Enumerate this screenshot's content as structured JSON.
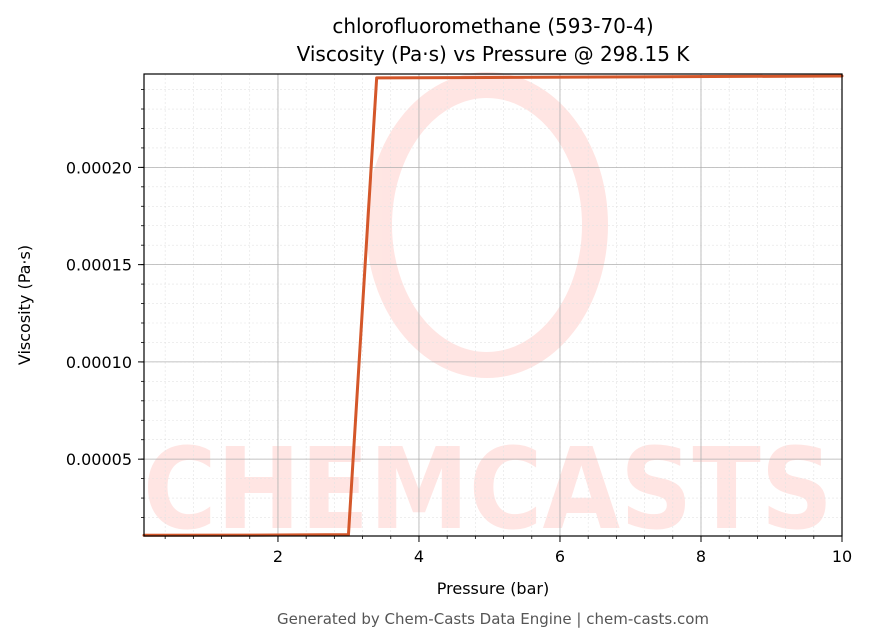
{
  "chart_data": {
    "type": "line",
    "title": "chlorofluoromethane (593-70-4)",
    "subtitle": "Viscosity (Pa·s) vs Pressure @ 298.15 K",
    "xlabel": "Pressure (bar)",
    "ylabel": "Viscosity (Pa·s)",
    "xlim": [
      0.1,
      10
    ],
    "ylim": [
      1.05e-05,
      0.000248
    ],
    "x_ticks": [
      2,
      4,
      6,
      8,
      10
    ],
    "x_tick_labels": [
      "2",
      "4",
      "6",
      "8",
      "10"
    ],
    "y_ticks": [
      5e-05,
      0.0001,
      0.00015,
      0.0002
    ],
    "y_tick_labels": [
      "0.00005",
      "0.00010",
      "0.00015",
      "0.00020"
    ],
    "grid": true,
    "minor_grid": true,
    "series": [
      {
        "color": "#d4572a",
        "x": [
          0.1,
          2.0,
          3.0,
          3.4,
          5.0,
          7.0,
          10.0
        ],
        "y": [
          1.09e-05,
          1.1e-05,
          1.12e-05,
          0.000246,
          0.0002462,
          0.0002465,
          0.000247
        ]
      }
    ]
  },
  "watermark": {
    "text": "CHEMCASTS",
    "color": "#ffe3e0"
  },
  "footer": "Generated by Chem-Casts Data Engine | chem-casts.com"
}
